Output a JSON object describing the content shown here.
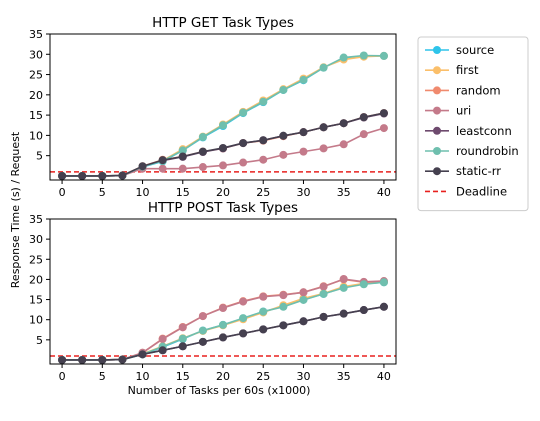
{
  "shared": {
    "x": [
      0,
      2.5,
      5,
      7.5,
      10,
      12.5,
      15,
      17.5,
      20,
      22.5,
      25,
      27.5,
      30,
      32.5,
      35,
      37.5,
      40
    ],
    "xlabel": "Number of Tasks per 60s (x1000)",
    "ylabel": "Response Time (s) / Request",
    "xticks": [
      "0",
      "5",
      "10",
      "15",
      "20",
      "25",
      "30",
      "35",
      "40"
    ],
    "yticks": [
      "5",
      "10",
      "15",
      "20",
      "25",
      "30",
      "35"
    ]
  },
  "legend": {
    "position": "right",
    "entries": [
      {
        "label": "source",
        "color": "#2ec4ea",
        "style": "line-marker"
      },
      {
        "label": "first",
        "color": "#fbbf6a",
        "style": "line-marker"
      },
      {
        "label": "random",
        "color": "#f08a6e",
        "style": "line-marker"
      },
      {
        "label": "uri",
        "color": "#c47a8a",
        "style": "line-marker"
      },
      {
        "label": "leastconn",
        "color": "#6e4a6e",
        "style": "line-marker"
      },
      {
        "label": "roundrobin",
        "color": "#6fbfae",
        "style": "line-marker"
      },
      {
        "label": "static-rr",
        "color": "#45404f",
        "style": "line-marker"
      },
      {
        "label": "Deadline",
        "color": "#e8201e",
        "style": "dashed"
      }
    ]
  },
  "chart_data": [
    {
      "type": "line",
      "title": "HTTP GET Task Types",
      "xlim": [
        -1.5,
        41.5
      ],
      "ylim": [
        -1,
        35
      ],
      "deadline": 1,
      "grid": false,
      "series": [
        {
          "name": "source",
          "color": "#2ec4ea",
          "values": [
            0,
            0,
            0,
            0.1,
            2.2,
            3.6,
            6.3,
            9.5,
            12.3,
            15.5,
            18.2,
            21.2,
            23.6,
            26.7,
            29.1,
            29.6,
            29.6
          ]
        },
        {
          "name": "first",
          "color": "#fbbf6a",
          "values": [
            0,
            0,
            0,
            0.1,
            2.3,
            3.8,
            6.6,
            9.7,
            12.7,
            15.8,
            18.6,
            21.4,
            24.0,
            26.8,
            28.7,
            29.4,
            29.6
          ]
        },
        {
          "name": "random",
          "color": "#f08a6e",
          "values": [
            0,
            0,
            0,
            0.1,
            2.4,
            4.0,
            4.8,
            6.0,
            6.8,
            8.1,
            8.7,
            9.8,
            10.8,
            12.0,
            13.0,
            14.5,
            15.5
          ]
        },
        {
          "name": "uri",
          "color": "#c47a8a",
          "values": [
            0,
            0,
            0,
            0.1,
            1.8,
            1.8,
            1.8,
            2.2,
            2.6,
            3.3,
            4.0,
            5.2,
            6.0,
            6.8,
            7.8,
            10.3,
            11.8
          ]
        },
        {
          "name": "leastconn",
          "color": "#6e4a6e",
          "values": [
            0,
            0,
            0,
            0.1,
            2.3,
            3.8,
            4.7,
            5.9,
            6.8,
            8.1,
            8.8,
            9.9,
            10.8,
            12.0,
            13.0,
            14.4,
            15.4
          ]
        },
        {
          "name": "roundrobin",
          "color": "#6fbfae",
          "values": [
            0,
            0,
            0,
            0.1,
            2.3,
            3.7,
            6.3,
            9.6,
            12.5,
            15.6,
            18.3,
            21.2,
            23.7,
            26.7,
            29.2,
            29.7,
            29.6
          ]
        },
        {
          "name": "static-rr",
          "color": "#45404f",
          "values": [
            0,
            0,
            0,
            0.1,
            2.4,
            3.9,
            4.8,
            6.0,
            6.9,
            8.1,
            8.8,
            9.9,
            10.8,
            12.0,
            13.0,
            14.5,
            15.5
          ]
        }
      ]
    },
    {
      "type": "line",
      "title": "HTTP POST Task Types",
      "xlim": [
        -1.5,
        41.5
      ],
      "ylim": [
        -1,
        35
      ],
      "deadline": 1,
      "grid": false,
      "series": [
        {
          "name": "source",
          "color": "#2ec4ea",
          "values": [
            0,
            0,
            0,
            0.1,
            1.4,
            3.2,
            5.2,
            7.3,
            8.7,
            10.3,
            12.0,
            13.3,
            15.0,
            16.4,
            18.0,
            18.9,
            19.3
          ]
        },
        {
          "name": "first",
          "color": "#fbbf6a",
          "values": [
            0,
            0,
            0,
            0.1,
            1.5,
            3.4,
            5.4,
            7.2,
            8.6,
            10.1,
            11.8,
            13.6,
            15.3,
            16.5,
            18.2,
            19.0,
            19.4
          ]
        },
        {
          "name": "random",
          "color": "#f08a6e",
          "values": [
            0,
            0,
            0,
            0.1,
            1.8,
            5.3,
            8.2,
            10.9,
            13.0,
            14.6,
            15.8,
            16.2,
            16.8,
            18.3,
            20.0,
            19.3,
            19.5
          ]
        },
        {
          "name": "uri",
          "color": "#c47a8a",
          "values": [
            0,
            0,
            0,
            0.1,
            1.8,
            5.2,
            8.1,
            10.9,
            12.9,
            14.5,
            15.7,
            16.1,
            16.8,
            18.2,
            20.1,
            19.4,
            19.6
          ]
        },
        {
          "name": "leastconn",
          "color": "#6e4a6e",
          "values": [
            0,
            0,
            0,
            0.1,
            1.4,
            2.4,
            3.4,
            4.5,
            5.6,
            6.6,
            7.6,
            8.6,
            9.6,
            10.7,
            11.5,
            12.4,
            13.2
          ]
        },
        {
          "name": "roundrobin",
          "color": "#6fbfae",
          "values": [
            0,
            0,
            0,
            0.1,
            1.4,
            3.3,
            5.3,
            7.3,
            8.7,
            10.4,
            12.0,
            13.2,
            14.9,
            16.4,
            17.9,
            18.8,
            19.3
          ]
        },
        {
          "name": "static-rr",
          "color": "#45404f",
          "values": [
            0,
            0,
            0,
            0.1,
            1.4,
            2.4,
            3.4,
            4.5,
            5.6,
            6.6,
            7.6,
            8.6,
            9.6,
            10.7,
            11.5,
            12.4,
            13.2
          ]
        }
      ]
    }
  ]
}
